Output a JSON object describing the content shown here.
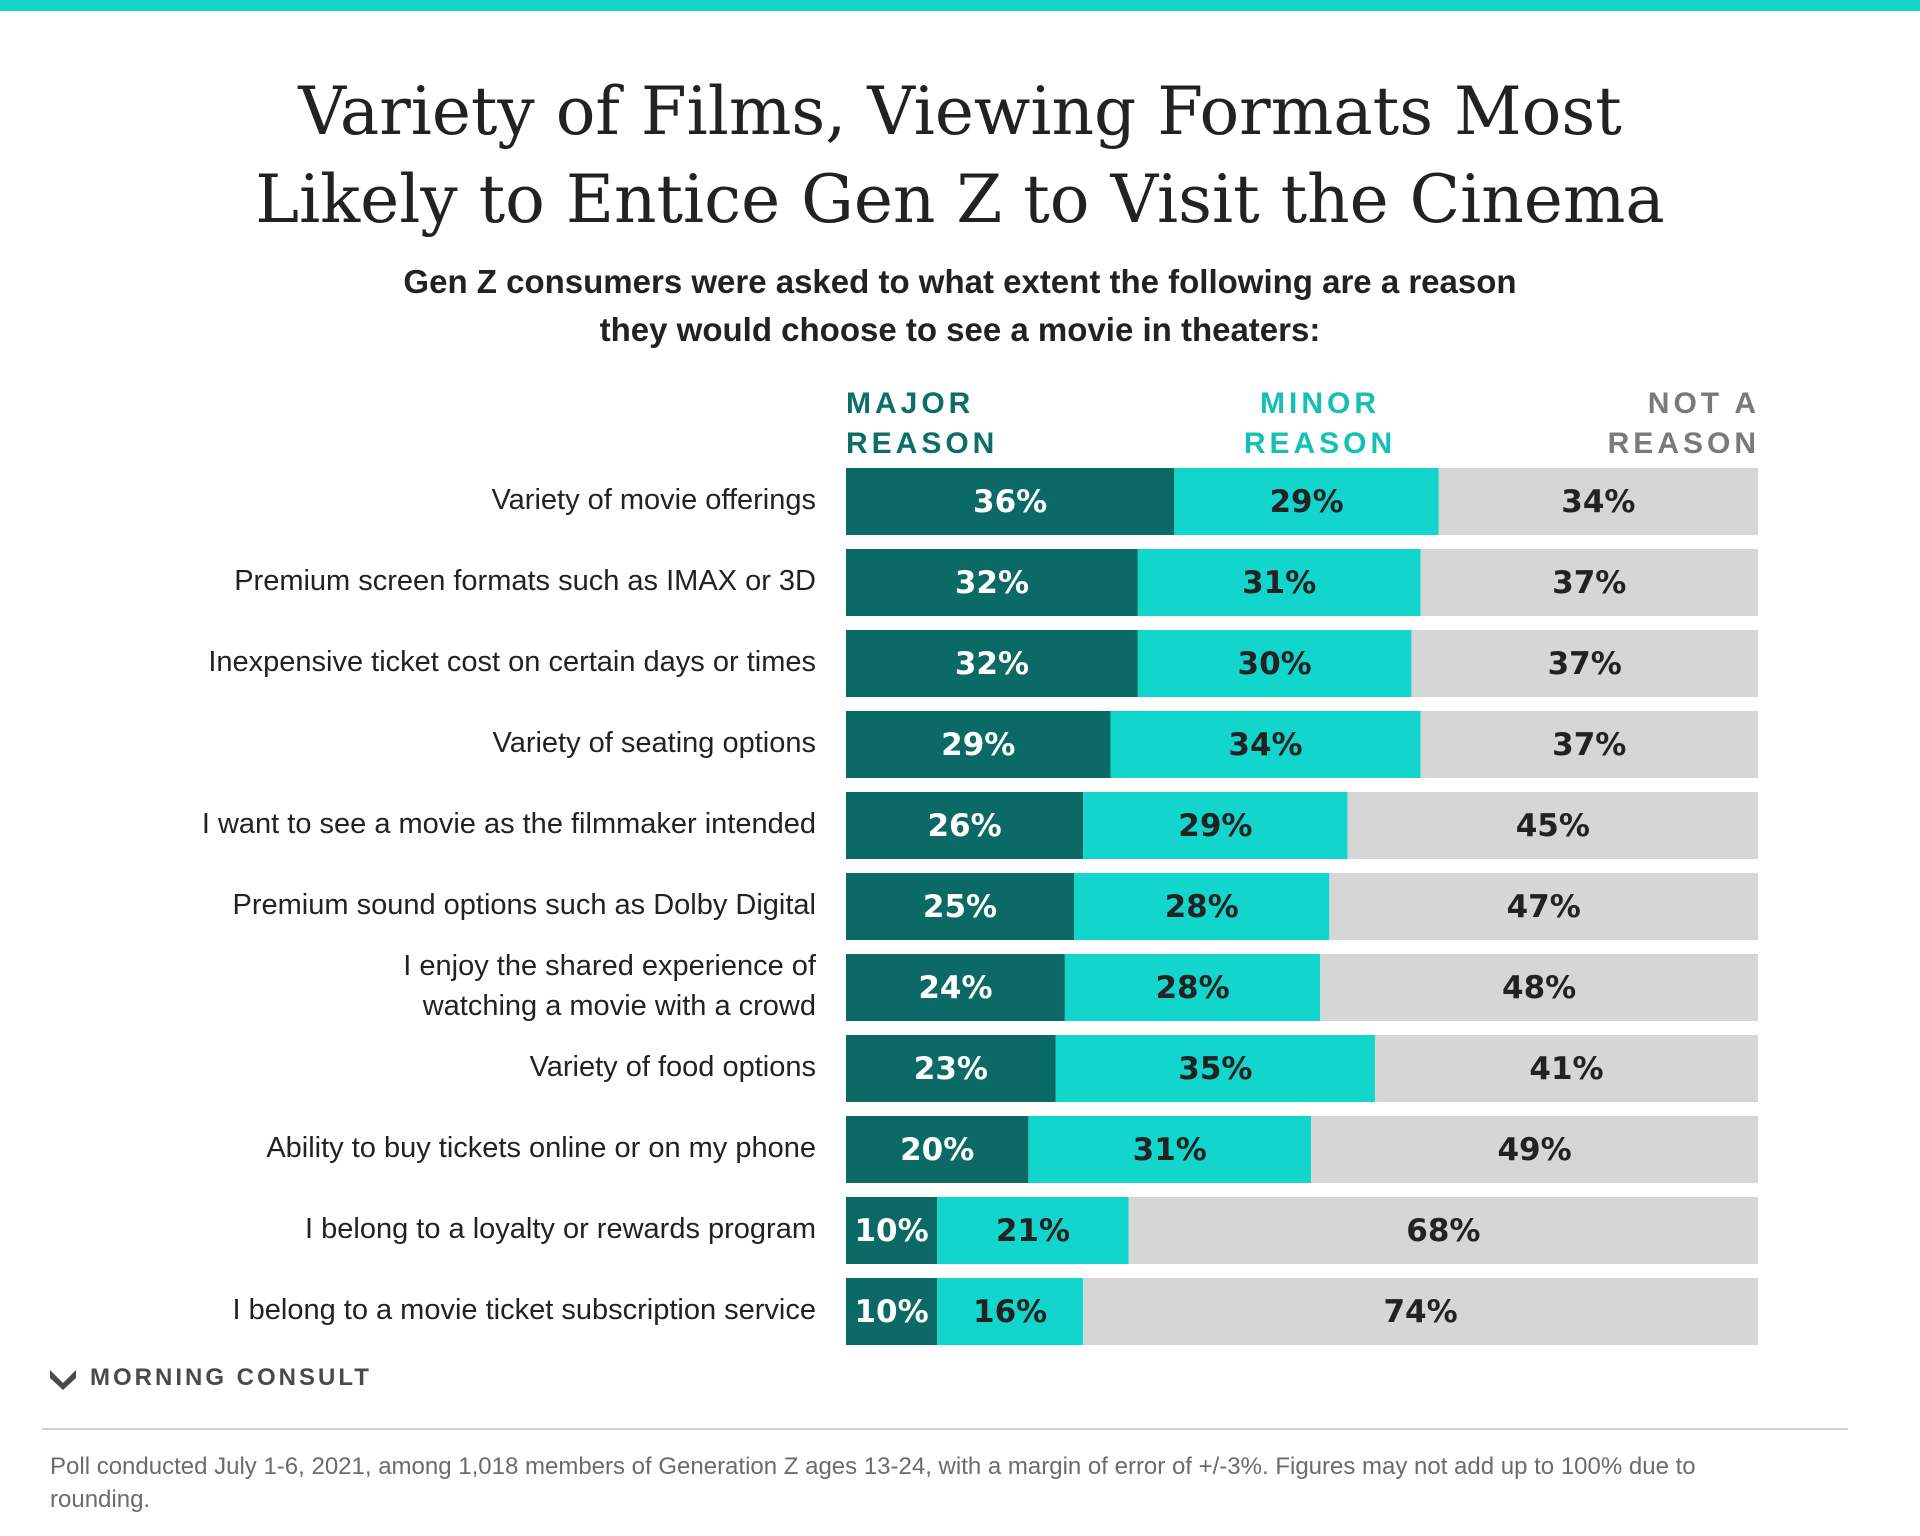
{
  "header": {
    "title_line1": "Variety of Films, Viewing Formats Most",
    "title_line2": "Likely to Entice Gen Z to Visit the Cinema",
    "subtitle_line1": "Gen Z consumers were asked to what extent the following are a reason",
    "subtitle_line2": "they would choose to see a movie in theaters:"
  },
  "colors": {
    "accent_bar": "#18d4c8",
    "major": "#0b6a66",
    "minor": "#12d6cc",
    "not": "#d6d6d6",
    "major_label": "#0c6e69",
    "minor_label": "#14c0b5",
    "not_label": "#7a7a7a"
  },
  "legend": {
    "major": [
      "MAJOR",
      "REASON"
    ],
    "minor": [
      "MINOR",
      "REASON"
    ],
    "not": [
      "NOT A",
      "REASON"
    ]
  },
  "chart_data": {
    "type": "bar",
    "orientation": "horizontal",
    "stacked": true,
    "title": "Variety of Films, Viewing Formats Most Likely to Entice Gen Z to Visit the Cinema",
    "categories": [
      [
        "Variety of movie offerings"
      ],
      [
        "Premium screen formats such as IMAX or 3D"
      ],
      [
        "Inexpensive ticket cost on certain days or times"
      ],
      [
        "Variety of seating options"
      ],
      [
        "I want to see a movie as the filmmaker intended"
      ],
      [
        "Premium sound options such as Dolby Digital"
      ],
      [
        "I enjoy the shared experience of",
        "watching a movie with a crowd"
      ],
      [
        "Variety of food options"
      ],
      [
        "Ability to buy tickets online or on my phone"
      ],
      [
        "I belong to a loyalty or rewards program"
      ],
      [
        "I belong to a movie ticket subscription service"
      ]
    ],
    "series": [
      {
        "name": "Major Reason",
        "values": [
          36,
          32,
          32,
          29,
          26,
          25,
          24,
          23,
          20,
          10,
          10
        ]
      },
      {
        "name": "Minor Reason",
        "values": [
          29,
          31,
          30,
          34,
          29,
          28,
          28,
          35,
          31,
          21,
          16
        ]
      },
      {
        "name": "Not a Reason",
        "values": [
          34,
          37,
          37,
          37,
          45,
          47,
          48,
          41,
          49,
          68,
          74
        ]
      }
    ],
    "value_suffix": "%",
    "xlim": [
      0,
      100
    ]
  },
  "footer": {
    "brand": "MORNING CONSULT",
    "note": "Poll conducted July 1-6, 2021, among 1,018 members of Generation Z ages 13-24, with a margin of error of +/-3%. Figures may not add up to 100% due to rounding."
  }
}
